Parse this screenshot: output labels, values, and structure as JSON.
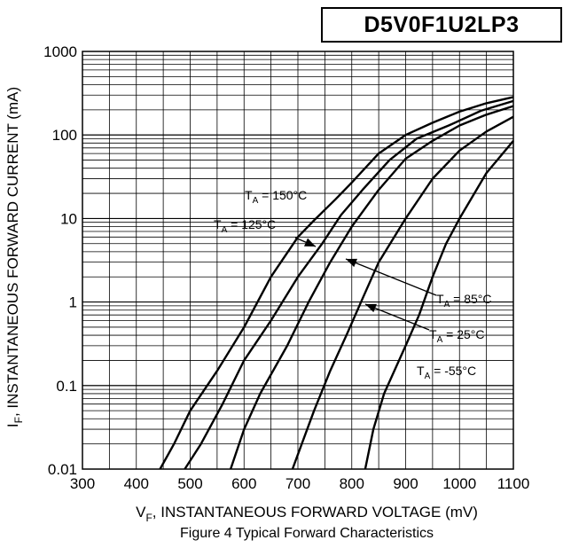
{
  "part_number": "D5V0F1U2LP3",
  "chart_data": {
    "type": "line",
    "title": "Figure 4 Typical Forward Characteristics",
    "xlabel": {
      "main": "V",
      "sub": "F",
      "rest": ", INSTANTANEOUS FORWARD VOLTAGE (mV)"
    },
    "ylabel": {
      "main": "I",
      "sub": "F",
      "rest": ", INSTANTANEOUS FORWARD CURRENT (mA)"
    },
    "xlim": [
      300,
      1100
    ],
    "ylim": [
      0.01,
      1000
    ],
    "yscale": "log",
    "grid": true,
    "x_ticks": [
      300,
      400,
      500,
      600,
      700,
      800,
      900,
      1000,
      1100
    ],
    "y_ticks": [
      0.01,
      0.1,
      1,
      10,
      100,
      1000
    ],
    "y_tick_labels": [
      "0.01",
      "0.1",
      "1",
      "10",
      "100",
      "1000"
    ],
    "series": [
      {
        "label": {
          "main": "T",
          "sub": "A",
          "rest": " = 150°C"
        },
        "points": [
          [
            444,
            0.01
          ],
          [
            470,
            0.02
          ],
          [
            500,
            0.05
          ],
          [
            550,
            0.15
          ],
          [
            600,
            0.5
          ],
          [
            650,
            2
          ],
          [
            700,
            6
          ],
          [
            730,
            9.5
          ],
          [
            770,
            17
          ],
          [
            800,
            27
          ],
          [
            850,
            60
          ],
          [
            900,
            100
          ],
          [
            950,
            140
          ],
          [
            1000,
            190
          ],
          [
            1050,
            240
          ],
          [
            1100,
            285
          ]
        ]
      },
      {
        "label": {
          "main": "T",
          "sub": "A",
          "rest": " = 125°C"
        },
        "points": [
          [
            490,
            0.01
          ],
          [
            520,
            0.02
          ],
          [
            560,
            0.06
          ],
          [
            600,
            0.2
          ],
          [
            650,
            0.6
          ],
          [
            700,
            2
          ],
          [
            745,
            5
          ],
          [
            780,
            11
          ],
          [
            820,
            22
          ],
          [
            870,
            50
          ],
          [
            920,
            90
          ],
          [
            980,
            130
          ],
          [
            1040,
            195
          ],
          [
            1100,
            255
          ]
        ]
      },
      {
        "label": {
          "main": "T",
          "sub": "A",
          "rest": " = 85°C"
        },
        "points": [
          [
            575,
            0.01
          ],
          [
            600,
            0.03
          ],
          [
            630,
            0.08
          ],
          [
            680,
            0.3
          ],
          [
            720,
            1
          ],
          [
            760,
            3
          ],
          [
            800,
            8
          ],
          [
            850,
            22
          ],
          [
            900,
            52
          ],
          [
            950,
            85
          ],
          [
            1000,
            130
          ],
          [
            1050,
            175
          ],
          [
            1100,
            222
          ]
        ]
      },
      {
        "label": {
          "main": "T",
          "sub": "A",
          "rest": " = 25°C"
        },
        "points": [
          [
            690,
            0.01
          ],
          [
            700,
            0.015
          ],
          [
            730,
            0.05
          ],
          [
            760,
            0.15
          ],
          [
            790,
            0.4
          ],
          [
            820,
            1.1
          ],
          [
            850,
            3
          ],
          [
            900,
            10
          ],
          [
            950,
            30
          ],
          [
            1000,
            65
          ],
          [
            1050,
            110
          ],
          [
            1100,
            165
          ]
        ]
      },
      {
        "label": {
          "main": "T",
          "sub": "A",
          "rest": " = -55°C"
        },
        "points": [
          [
            825,
            0.01
          ],
          [
            840,
            0.03
          ],
          [
            860,
            0.08
          ],
          [
            900,
            0.3
          ],
          [
            925,
            0.7
          ],
          [
            950,
            2
          ],
          [
            975,
            5
          ],
          [
            1000,
            10
          ],
          [
            1050,
            35
          ],
          [
            1100,
            85
          ]
        ]
      }
    ]
  }
}
